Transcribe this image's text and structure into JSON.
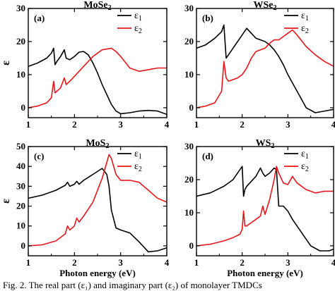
{
  "figure": {
    "caption": "Fig. 2.   The real part (ε₁) and imaginary part (ε₂) of monolayer TMDCs",
    "colors": {
      "eps1": "#000000",
      "eps2": "#e8161a",
      "axis": "#000000"
    }
  },
  "chart_data": [
    {
      "type": "line",
      "panel_label": "(a)",
      "title": "MoSe2",
      "xlabel": "",
      "ylabel": "ε",
      "xlim": [
        1,
        4
      ],
      "ylim": [
        -3,
        30
      ],
      "x_ticks": [
        1,
        2,
        3,
        4
      ],
      "y_ticks": [
        0,
        10,
        20,
        30
      ],
      "legend": {
        "position": "top-right",
        "entries": [
          "ε1",
          "ε2"
        ]
      },
      "series": [
        {
          "name": "ε1",
          "color": "#000000",
          "x": [
            1.0,
            1.2,
            1.4,
            1.5,
            1.55,
            1.58,
            1.62,
            1.7,
            1.78,
            1.82,
            1.9,
            2.0,
            2.1,
            2.2,
            2.3,
            2.4,
            2.5,
            2.6,
            2.7,
            2.8,
            2.9,
            3.0,
            3.2,
            3.4,
            3.6,
            3.8,
            4.0
          ],
          "y": [
            12.5,
            13.5,
            15.0,
            16.5,
            18.0,
            13.0,
            14.0,
            15.5,
            17.5,
            15.0,
            14.5,
            15.5,
            16.8,
            17.0,
            16.0,
            13.5,
            10.5,
            7.0,
            4.0,
            1.0,
            -1.0,
            -1.8,
            -1.5,
            -1.0,
            -0.8,
            -1.0,
            -2.0
          ]
        },
        {
          "name": "ε2",
          "color": "#e8161a",
          "x": [
            1.0,
            1.2,
            1.4,
            1.5,
            1.55,
            1.58,
            1.62,
            1.7,
            1.78,
            1.82,
            1.9,
            2.0,
            2.2,
            2.4,
            2.6,
            2.8,
            2.9,
            3.0,
            3.2,
            3.4,
            3.6,
            3.8,
            4.0
          ],
          "y": [
            0.0,
            0.5,
            1.5,
            3.0,
            8.0,
            4.5,
            5.0,
            6.0,
            9.0,
            7.0,
            8.0,
            9.5,
            12.5,
            15.5,
            17.5,
            18.0,
            17.0,
            15.5,
            12.0,
            11.0,
            11.5,
            12.0,
            12.0
          ]
        }
      ]
    },
    {
      "type": "line",
      "panel_label": "(b)",
      "title": "WSe2",
      "xlabel": "",
      "ylabel": "",
      "xlim": [
        1,
        4
      ],
      "ylim": [
        -3,
        30
      ],
      "x_ticks": [
        1,
        2,
        3,
        4
      ],
      "y_ticks": [
        0,
        10,
        20,
        30
      ],
      "legend": {
        "position": "top-right",
        "entries": [
          "ε1",
          "ε2"
        ]
      },
      "series": [
        {
          "name": "ε1",
          "color": "#000000",
          "x": [
            1.0,
            1.2,
            1.4,
            1.55,
            1.6,
            1.65,
            1.7,
            1.8,
            1.9,
            2.0,
            2.1,
            2.2,
            2.3,
            2.4,
            2.5,
            2.6,
            2.7,
            2.8,
            2.9,
            3.0,
            3.2,
            3.4,
            3.6,
            3.8,
            4.0
          ],
          "y": [
            18.0,
            19.0,
            21.0,
            23.0,
            25.0,
            15.0,
            16.0,
            18.0,
            20.0,
            22.0,
            24.0,
            22.5,
            21.0,
            20.5,
            20.0,
            19.0,
            17.5,
            15.5,
            13.0,
            10.0,
            5.0,
            0.0,
            -1.5,
            -1.0,
            -0.5
          ]
        },
        {
          "name": "ε2",
          "color": "#e8161a",
          "x": [
            1.0,
            1.2,
            1.4,
            1.55,
            1.6,
            1.65,
            1.7,
            1.8,
            1.9,
            2.0,
            2.1,
            2.2,
            2.3,
            2.4,
            2.5,
            2.6,
            2.7,
            2.8,
            2.9,
            3.0,
            3.1,
            3.2,
            3.4,
            3.6,
            3.8,
            4.0
          ],
          "y": [
            0.0,
            0.5,
            1.5,
            5.0,
            14.0,
            9.0,
            8.0,
            8.5,
            9.0,
            10.0,
            12.0,
            15.0,
            17.0,
            17.5,
            18.0,
            19.5,
            20.5,
            20.5,
            21.5,
            22.5,
            23.5,
            22.0,
            18.5,
            16.0,
            14.0,
            12.5
          ]
        }
      ]
    },
    {
      "type": "line",
      "panel_label": "(c)",
      "title": "MoS2",
      "xlabel": "Photon energy (eV)",
      "ylabel": "ε",
      "xlim": [
        1,
        4
      ],
      "ylim": [
        -5,
        50
      ],
      "x_ticks": [
        1,
        2,
        3,
        4
      ],
      "y_ticks": [
        0,
        10,
        20,
        30,
        40,
        50
      ],
      "legend": {
        "position": "top-right",
        "entries": [
          "ε1",
          "ε2"
        ]
      },
      "series": [
        {
          "name": "ε1",
          "color": "#000000",
          "x": [
            1.0,
            1.3,
            1.6,
            1.8,
            1.85,
            1.9,
            2.0,
            2.05,
            2.1,
            2.2,
            2.4,
            2.6,
            2.7,
            2.75,
            2.8,
            2.9,
            3.0,
            3.2,
            3.4,
            3.6,
            3.8,
            4.0
          ],
          "y": [
            24.0,
            25.5,
            28.0,
            30.5,
            32.0,
            30.0,
            31.0,
            32.5,
            31.0,
            33.0,
            36.0,
            39.0,
            36.0,
            30.0,
            18.0,
            9.0,
            8.0,
            6.5,
            2.0,
            -3.0,
            -2.5,
            -1.0
          ]
        },
        {
          "name": "ε2",
          "color": "#e8161a",
          "x": [
            1.0,
            1.3,
            1.6,
            1.8,
            1.85,
            1.9,
            2.0,
            2.05,
            2.1,
            2.2,
            2.4,
            2.6,
            2.7,
            2.75,
            2.8,
            2.9,
            3.0,
            3.2,
            3.4,
            3.6,
            3.8,
            4.0
          ],
          "y": [
            0.0,
            0.5,
            2.5,
            6.0,
            10.0,
            8.0,
            10.0,
            14.0,
            12.0,
            15.0,
            22.0,
            34.0,
            42.0,
            46.0,
            44.0,
            36.0,
            33.0,
            33.0,
            32.0,
            28.0,
            24.0,
            22.0
          ]
        }
      ]
    },
    {
      "type": "line",
      "panel_label": "(d)",
      "title": "WS2",
      "xlabel": "Photon energy (eV)",
      "ylabel": "",
      "xlim": [
        1,
        4
      ],
      "ylim": [
        -3,
        30
      ],
      "x_ticks": [
        1,
        2,
        3,
        4
      ],
      "y_ticks": [
        0,
        10,
        20,
        30
      ],
      "legend": {
        "position": "top-right",
        "entries": [
          "ε1",
          "ε2"
        ]
      },
      "series": [
        {
          "name": "ε1",
          "color": "#000000",
          "x": [
            1.0,
            1.3,
            1.6,
            1.8,
            1.95,
            2.0,
            2.03,
            2.06,
            2.1,
            2.2,
            2.3,
            2.4,
            2.45,
            2.5,
            2.6,
            2.7,
            2.75,
            2.8,
            2.9,
            3.0,
            3.1,
            3.3,
            3.5,
            3.7,
            3.9,
            4.0
          ],
          "y": [
            15.0,
            16.0,
            18.0,
            20.0,
            23.0,
            24.0,
            15.0,
            17.0,
            18.0,
            19.5,
            21.0,
            23.5,
            22.0,
            21.0,
            22.0,
            23.5,
            23.0,
            12.0,
            12.0,
            10.5,
            8.0,
            4.0,
            0.0,
            -1.5,
            -1.5,
            -1.0
          ]
        },
        {
          "name": "ε2",
          "color": "#e8161a",
          "x": [
            1.0,
            1.3,
            1.6,
            1.8,
            1.95,
            2.0,
            2.03,
            2.06,
            2.1,
            2.2,
            2.3,
            2.4,
            2.45,
            2.5,
            2.6,
            2.7,
            2.75,
            2.8,
            2.9,
            3.0,
            3.1,
            3.2,
            3.4,
            3.6,
            3.8,
            4.0
          ],
          "y": [
            0.0,
            0.5,
            1.5,
            2.5,
            3.5,
            5.0,
            10.5,
            6.0,
            6.0,
            7.0,
            8.0,
            9.0,
            12.0,
            9.5,
            14.0,
            20.0,
            24.0,
            22.0,
            19.0,
            18.5,
            21.0,
            19.0,
            17.0,
            16.0,
            16.5,
            16.5
          ]
        }
      ]
    }
  ]
}
